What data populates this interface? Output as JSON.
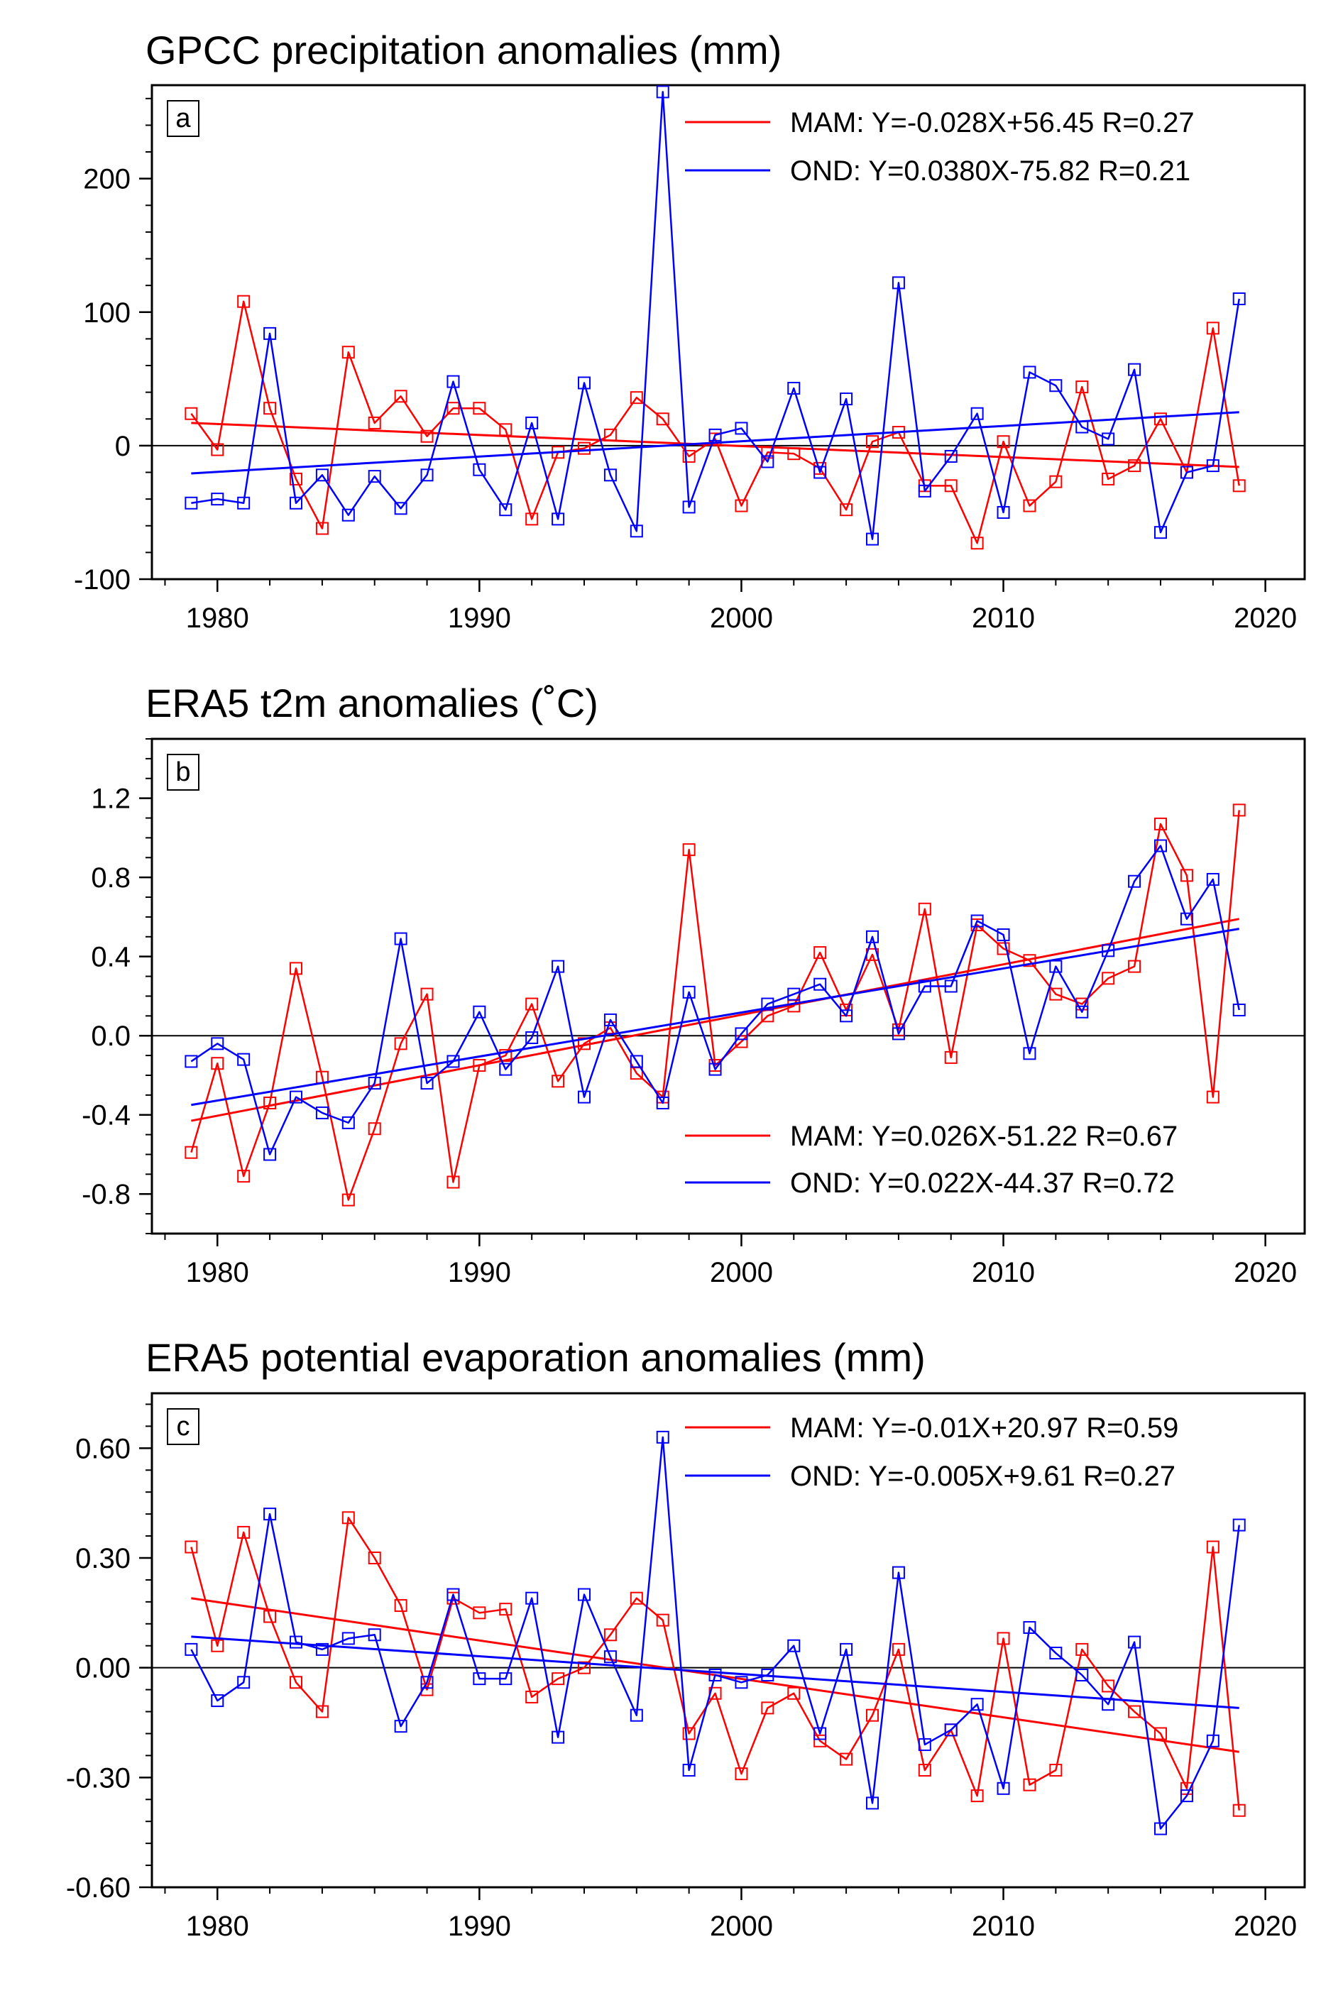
{
  "chart_data": [
    {
      "type": "line",
      "panel": "a",
      "title": "GPCC precipitation anomalies (mm)",
      "xlabel": "",
      "ylabel": "",
      "xlim": [
        1977.5,
        2021.5
      ],
      "ylim": [
        -100,
        270
      ],
      "xticks": [
        1980,
        1990,
        2000,
        2010,
        2020
      ],
      "yticks": [
        -100,
        0,
        100,
        200
      ],
      "ytick_labels": [
        "-100",
        "0",
        "100",
        "200"
      ],
      "ytick_minor_step": 20,
      "zero_line": true,
      "legend_position": "top-right",
      "x": [
        1979,
        1980,
        1981,
        1982,
        1983,
        1984,
        1985,
        1986,
        1987,
        1988,
        1989,
        1990,
        1991,
        1992,
        1993,
        1994,
        1995,
        1996,
        1997,
        1998,
        1999,
        2000,
        2001,
        2002,
        2003,
        2004,
        2005,
        2006,
        2007,
        2008,
        2009,
        2010,
        2011,
        2012,
        2013,
        2014,
        2015,
        2016,
        2017,
        2018,
        2019
      ],
      "series": [
        {
          "name": "MAM",
          "color": "#ff0000",
          "legend": "MAM:  Y=-0.028X+56.45  R=0.27",
          "values": [
            24,
            -3,
            108,
            28,
            -25,
            -62,
            70,
            17,
            37,
            7,
            28,
            28,
            12,
            -55,
            -5,
            -2,
            8,
            36,
            20,
            -8,
            5,
            -45,
            -5,
            -6,
            -17,
            -48,
            3,
            10,
            -30,
            -30,
            -73,
            3,
            -45,
            -27,
            44,
            -25,
            -15,
            20,
            -20,
            88,
            -30
          ],
          "trend": [
            17.05,
            -15.93
          ]
        },
        {
          "name": "OND",
          "color": "#0000ff",
          "legend": "OND:  Y=0.0380X-75.82  R=0.21",
          "values": [
            -43,
            -40,
            -43,
            84,
            -43,
            -22,
            -52,
            -23,
            -47,
            -22,
            48,
            -18,
            -48,
            17,
            -55,
            47,
            -22,
            -64,
            265,
            -46,
            8,
            13,
            -12,
            43,
            -20,
            35,
            -70,
            122,
            -34,
            -8,
            24,
            -50,
            55,
            45,
            14,
            5,
            57,
            -65,
            -20,
            -15,
            110
          ],
          "trend": [
            -20.79,
            25.09
          ]
        }
      ]
    },
    {
      "type": "line",
      "panel": "b",
      "title": "ERA5 t2m anomalies (˚C)",
      "xlabel": "",
      "ylabel": "",
      "xlim": [
        1977.5,
        2021.5
      ],
      "ylim": [
        -1.0,
        1.5
      ],
      "xticks": [
        1980,
        1990,
        2000,
        2010,
        2020
      ],
      "yticks": [
        -0.8,
        -0.4,
        0.0,
        0.4,
        0.8,
        1.2
      ],
      "ytick_labels": [
        "-0.8",
        "-0.4",
        "0.0",
        "0.4",
        "0.8",
        "1.2"
      ],
      "ytick_minor_step": 0.1,
      "zero_line": true,
      "legend_position": "bottom-right",
      "x": [
        1979,
        1980,
        1981,
        1982,
        1983,
        1984,
        1985,
        1986,
        1987,
        1988,
        1989,
        1990,
        1991,
        1992,
        1993,
        1994,
        1995,
        1996,
        1997,
        1998,
        1999,
        2000,
        2001,
        2002,
        2003,
        2004,
        2005,
        2006,
        2007,
        2008,
        2009,
        2010,
        2011,
        2012,
        2013,
        2014,
        2015,
        2016,
        2017,
        2018,
        2019
      ],
      "series": [
        {
          "name": "MAM",
          "color": "#ff0000",
          "legend": "MAM:  Y=0.026X-51.22  R=0.67",
          "values": [
            -0.59,
            -0.14,
            -0.71,
            -0.34,
            0.34,
            -0.21,
            -0.83,
            -0.47,
            -0.04,
            0.21,
            -0.74,
            -0.15,
            -0.1,
            0.16,
            -0.23,
            -0.04,
            0.04,
            -0.19,
            -0.31,
            0.94,
            -0.15,
            -0.03,
            0.1,
            0.15,
            0.42,
            0.13,
            0.41,
            0.03,
            0.64,
            -0.11,
            0.56,
            0.44,
            0.38,
            0.21,
            0.16,
            0.29,
            0.35,
            1.07,
            0.81,
            -0.31,
            1.14
          ],
          "trend": [
            -0.43,
            0.59
          ]
        },
        {
          "name": "OND",
          "color": "#0000ff",
          "legend": "OND:  Y=0.022X-44.37  R=0.72",
          "values": [
            -0.13,
            -0.04,
            -0.12,
            -0.6,
            -0.31,
            -0.39,
            -0.44,
            -0.24,
            0.49,
            -0.24,
            -0.13,
            0.12,
            -0.17,
            -0.01,
            0.35,
            -0.31,
            0.08,
            -0.13,
            -0.34,
            0.22,
            -0.17,
            0.01,
            0.16,
            0.21,
            0.26,
            0.1,
            0.5,
            0.01,
            0.25,
            0.25,
            0.58,
            0.51,
            -0.09,
            0.35,
            0.12,
            0.43,
            0.78,
            0.96,
            0.59,
            0.79,
            0.13
          ],
          "trend": [
            -0.35,
            0.54
          ]
        }
      ]
    },
    {
      "type": "line",
      "panel": "c",
      "title": "ERA5 potential evaporation anomalies (mm)",
      "xlabel": "",
      "ylabel": "",
      "xlim": [
        1977.5,
        2021.5
      ],
      "ylim": [
        -0.6,
        0.75
      ],
      "xticks": [
        1980,
        1990,
        2000,
        2010,
        2020
      ],
      "yticks": [
        -0.6,
        -0.3,
        0.0,
        0.3,
        0.6
      ],
      "ytick_labels": [
        "-0.60",
        "-0.30",
        "0.00",
        "0.30",
        "0.60"
      ],
      "ytick_minor_step": 0.06,
      "zero_line": true,
      "legend_position": "top-right",
      "x": [
        1979,
        1980,
        1981,
        1982,
        1983,
        1984,
        1985,
        1986,
        1987,
        1988,
        1989,
        1990,
        1991,
        1992,
        1993,
        1994,
        1995,
        1996,
        1997,
        1998,
        1999,
        2000,
        2001,
        2002,
        2003,
        2004,
        2005,
        2006,
        2007,
        2008,
        2009,
        2010,
        2011,
        2012,
        2013,
        2014,
        2015,
        2016,
        2017,
        2018,
        2019
      ],
      "series": [
        {
          "name": "MAM",
          "color": "#ff0000",
          "legend": "MAM:  Y=-0.01X+20.97  R=0.59",
          "values": [
            0.33,
            0.06,
            0.37,
            0.14,
            -0.04,
            -0.12,
            0.41,
            0.3,
            0.17,
            -0.06,
            0.19,
            0.15,
            0.16,
            -0.08,
            -0.03,
            0.0,
            0.09,
            0.19,
            0.13,
            -0.18,
            -0.07,
            -0.29,
            -0.11,
            -0.07,
            -0.2,
            -0.25,
            -0.13,
            0.05,
            -0.28,
            -0.17,
            -0.35,
            0.08,
            -0.32,
            -0.28,
            0.05,
            -0.05,
            -0.12,
            -0.18,
            -0.33,
            0.33,
            -0.39
          ],
          "trend": [
            0.19,
            -0.23
          ]
        },
        {
          "name": "OND",
          "color": "#0000ff",
          "legend": "OND:  Y=-0.005X+9.61  R=0.27",
          "values": [
            0.05,
            -0.09,
            -0.04,
            0.42,
            0.07,
            0.05,
            0.08,
            0.09,
            -0.16,
            -0.04,
            0.2,
            -0.03,
            -0.03,
            0.19,
            -0.19,
            0.2,
            0.03,
            -0.13,
            0.63,
            -0.28,
            -0.02,
            -0.04,
            -0.02,
            0.06,
            -0.18,
            0.05,
            -0.37,
            0.26,
            -0.21,
            -0.17,
            -0.1,
            -0.33,
            0.11,
            0.04,
            -0.02,
            -0.1,
            0.07,
            -0.44,
            -0.35,
            -0.2,
            0.39
          ],
          "trend": [
            0.085,
            -0.11
          ]
        }
      ]
    }
  ]
}
